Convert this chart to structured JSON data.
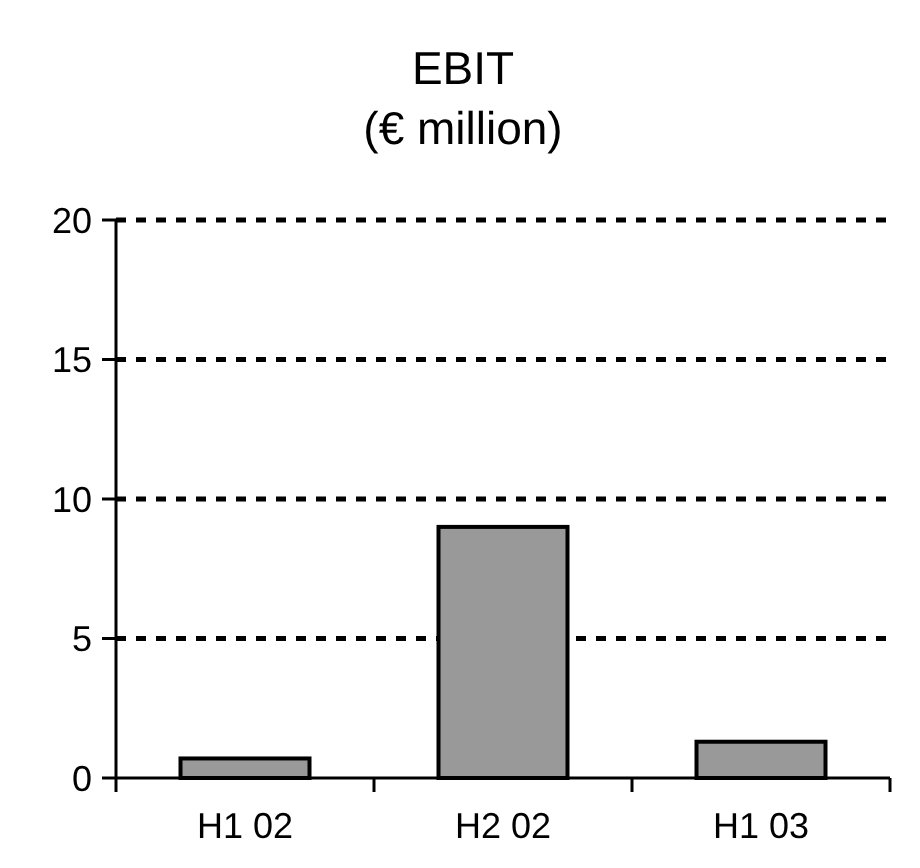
{
  "chart_data": {
    "type": "bar",
    "title": "EBIT",
    "subtitle": "(€ million)",
    "categories": [
      "H1 02",
      "H2 02",
      "H1 03"
    ],
    "values": [
      0.7,
      9,
      1.3
    ],
    "color": "#999999",
    "ylim": [
      0,
      20
    ],
    "yticks": [
      0,
      5,
      10,
      15,
      20
    ],
    "grid": "y"
  }
}
